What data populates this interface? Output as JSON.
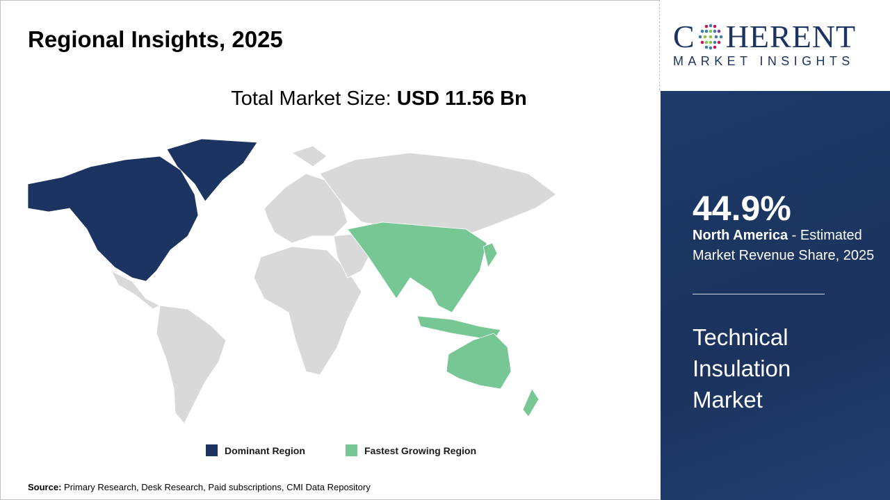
{
  "header": {
    "title": "Regional Insights, 2025"
  },
  "market_size": {
    "label": "Total Market Size: ",
    "value": "USD 11.56 Bn"
  },
  "legend": [
    {
      "label": "Dominant Region",
      "color": "#1c3461"
    },
    {
      "label": "Fastest Growing Region",
      "color": "#77c795"
    }
  ],
  "map_colors": {
    "other": "#d9d9d9",
    "dominant": "#1c3461",
    "fastest": "#77c795"
  },
  "regions": {
    "dominant": "North America",
    "fastest": "Asia Pacific"
  },
  "source": {
    "label": "Source:",
    "text": " Primary Research, Desk Research, Paid subscriptions, CMI Data Repository"
  },
  "logo": {
    "line1_a": "C",
    "line1_b": "HERENT",
    "line2": "MARKET INSIGHTS"
  },
  "panel": {
    "percent": "44.9%",
    "region": "North America",
    "desc": " - Estimated Market Revenue Share, 2025",
    "market_name": "Technical Insulation Market"
  }
}
